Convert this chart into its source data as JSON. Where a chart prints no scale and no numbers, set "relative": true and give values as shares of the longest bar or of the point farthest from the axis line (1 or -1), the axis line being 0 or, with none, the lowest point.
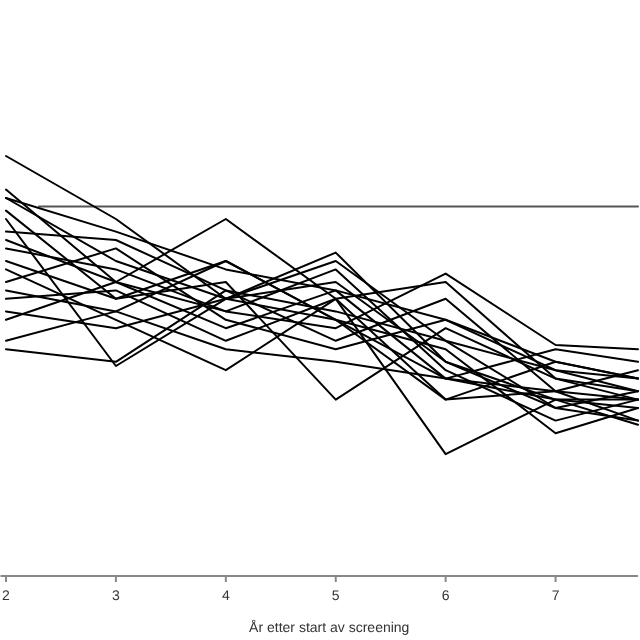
{
  "chart_data": {
    "type": "line",
    "relative": true,
    "xlabel": "År etter start av screening",
    "x": [
      2,
      3,
      4,
      5,
      6,
      7,
      7.75
    ],
    "xlim": [
      1.95,
      7.75
    ],
    "xticks": [
      2,
      3,
      4,
      5,
      6,
      7
    ],
    "series": [
      {
        "color": "#555555",
        "x": [
          2.3,
          7.75
        ],
        "values": [
          0.88,
          0.88
        ]
      },
      {
        "color": "#000000",
        "values": [
          1.0,
          0.85,
          0.66,
          0.61,
          0.47,
          0.42,
          0.4
        ]
      },
      {
        "color": "#000000",
        "values": [
          0.92,
          0.7,
          0.85,
          0.66,
          0.7,
          0.47,
          0.42
        ]
      },
      {
        "color": "#000000",
        "values": [
          0.9,
          0.75,
          0.66,
          0.75,
          0.56,
          0.49,
          0.44
        ]
      },
      {
        "color": "#000000",
        "values": [
          0.87,
          0.66,
          0.75,
          0.61,
          0.42,
          0.51,
          0.47
        ]
      },
      {
        "color": "#000000",
        "values": [
          0.85,
          0.5,
          0.66,
          0.7,
          0.51,
          0.4,
          0.37
        ]
      },
      {
        "color": "#000000",
        "values": [
          0.82,
          0.8,
          0.68,
          0.56,
          0.66,
          0.44,
          0.42
        ]
      },
      {
        "color": "#000000",
        "values": [
          0.8,
          0.7,
          0.59,
          0.68,
          0.47,
          0.54,
          0.51
        ]
      },
      {
        "color": "#000000",
        "values": [
          0.78,
          0.73,
          0.63,
          0.73,
          0.49,
          0.37,
          0.42
        ]
      },
      {
        "color": "#000000",
        "values": [
          0.75,
          0.66,
          0.7,
          0.42,
          0.59,
          0.47,
          0.44
        ]
      },
      {
        "color": "#000000",
        "values": [
          0.73,
          0.61,
          0.49,
          0.66,
          0.29,
          0.42,
          0.36
        ]
      },
      {
        "color": "#000000",
        "values": [
          0.7,
          0.78,
          0.61,
          0.54,
          0.61,
          0.49,
          0.47
        ]
      },
      {
        "color": "#000000",
        "values": [
          0.68,
          0.63,
          0.75,
          0.61,
          0.54,
          0.34,
          0.4
        ]
      },
      {
        "color": "#000000",
        "values": [
          0.66,
          0.68,
          0.56,
          0.66,
          0.42,
          0.44,
          0.49
        ]
      },
      {
        "color": "#000000",
        "values": [
          0.63,
          0.59,
          0.66,
          0.77,
          0.51,
          0.42,
          0.42
        ]
      },
      {
        "color": "#000000",
        "values": [
          0.61,
          0.7,
          0.63,
          0.59,
          0.72,
          0.55,
          0.54
        ]
      },
      {
        "color": "#000000",
        "values": [
          0.56,
          0.63,
          0.54,
          0.51,
          0.47,
          0.44,
          0.37
        ]
      },
      {
        "color": "#000000",
        "values": [
          0.54,
          0.51,
          0.68,
          0.63,
          0.56,
          0.4,
          0.44
        ]
      },
      {
        "color": "#000000",
        "values": [
          0.9,
          0.82,
          0.73,
          0.68,
          0.61,
          0.51,
          0.47
        ]
      }
    ]
  }
}
